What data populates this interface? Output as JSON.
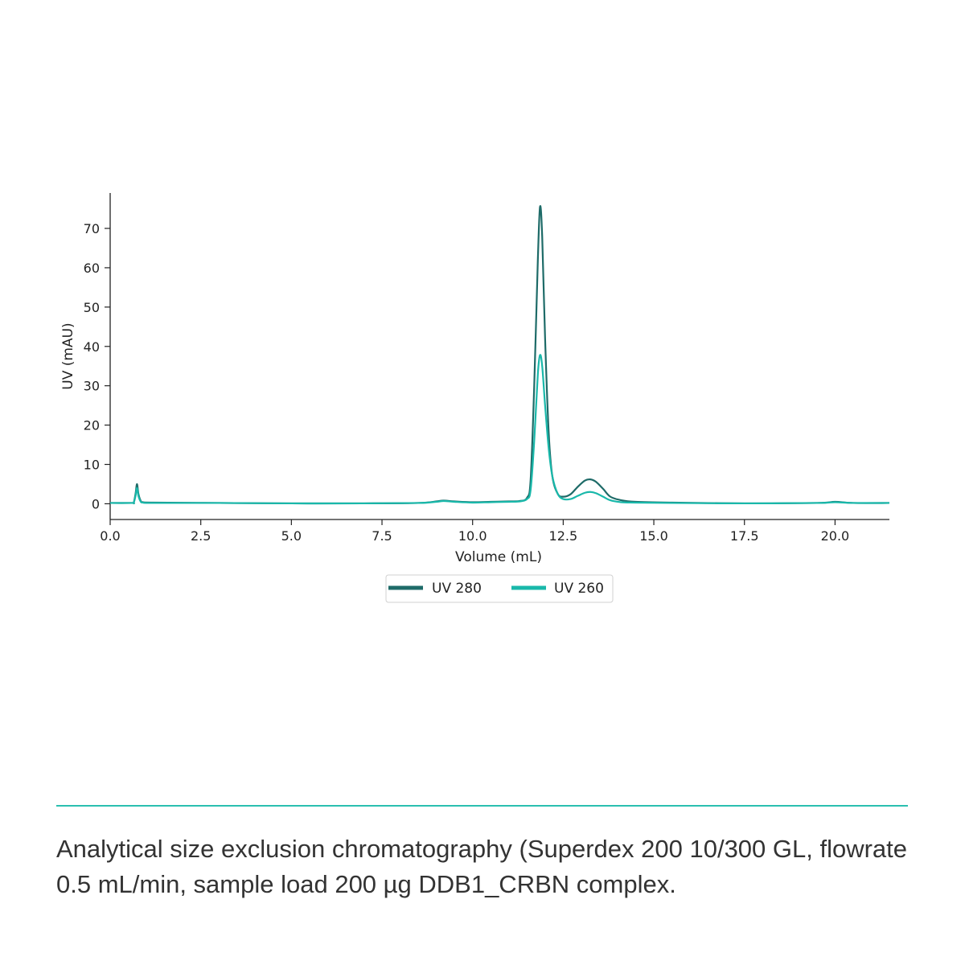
{
  "colors": {
    "uv280": "#1e6b68",
    "uv260": "#19b8aa",
    "divider": "#2bbfb0",
    "axis": "#222222",
    "caption_text": "#333333"
  },
  "chart_data": {
    "type": "line",
    "xlabel": "Volume (mL)",
    "ylabel": "UV (mAU)",
    "xlim": [
      0,
      21.5
    ],
    "ylim": [
      -4,
      79
    ],
    "xticks": [
      0.0,
      2.5,
      5.0,
      7.5,
      10.0,
      12.5,
      15.0,
      17.5,
      20.0
    ],
    "xtick_labels": [
      "0.0",
      "2.5",
      "5.0",
      "7.5",
      "10.0",
      "12.5",
      "15.0",
      "17.5",
      "20.0"
    ],
    "yticks": [
      0,
      10,
      20,
      30,
      40,
      50,
      60,
      70
    ],
    "ytick_labels": [
      "0",
      "10",
      "20",
      "30",
      "40",
      "50",
      "60",
      "70"
    ],
    "grid": false,
    "legend_position": "bottom-center",
    "series": [
      {
        "name": "UV 280",
        "color": "#1e6b68",
        "points": [
          [
            0,
            0.2
          ],
          [
            0.6,
            0.2
          ],
          [
            0.65,
            0.3
          ],
          [
            0.7,
            2.5
          ],
          [
            0.74,
            5.0
          ],
          [
            0.78,
            2.5
          ],
          [
            0.84,
            0.8
          ],
          [
            0.9,
            0.4
          ],
          [
            1.2,
            0.3
          ],
          [
            3,
            0.2
          ],
          [
            5,
            0.1
          ],
          [
            7,
            0.1
          ],
          [
            8.5,
            0.2
          ],
          [
            9.0,
            0.6
          ],
          [
            9.2,
            0.8
          ],
          [
            9.5,
            0.6
          ],
          [
            10.0,
            0.4
          ],
          [
            10.5,
            0.5
          ],
          [
            11.0,
            0.6
          ],
          [
            11.3,
            0.7
          ],
          [
            11.5,
            1.5
          ],
          [
            11.6,
            6
          ],
          [
            11.7,
            30
          ],
          [
            11.8,
            62
          ],
          [
            11.86,
            75.5
          ],
          [
            11.92,
            68
          ],
          [
            12.0,
            42
          ],
          [
            12.1,
            18
          ],
          [
            12.2,
            7
          ],
          [
            12.35,
            2.5
          ],
          [
            12.5,
            1.8
          ],
          [
            12.7,
            2.4
          ],
          [
            12.9,
            4.3
          ],
          [
            13.1,
            5.9
          ],
          [
            13.25,
            6.2
          ],
          [
            13.4,
            5.6
          ],
          [
            13.6,
            3.8
          ],
          [
            13.8,
            1.8
          ],
          [
            14.1,
            0.9
          ],
          [
            14.5,
            0.5
          ],
          [
            15.5,
            0.3
          ],
          [
            17.5,
            0.1
          ],
          [
            19.5,
            0.2
          ],
          [
            20.0,
            0.5
          ],
          [
            20.5,
            0.2
          ],
          [
            21.5,
            0.2
          ]
        ]
      },
      {
        "name": "UV 260",
        "color": "#19b8aa",
        "points": [
          [
            0,
            0.2
          ],
          [
            0.6,
            0.2
          ],
          [
            0.65,
            0.3
          ],
          [
            0.7,
            2.0
          ],
          [
            0.74,
            4.0
          ],
          [
            0.78,
            2.0
          ],
          [
            0.84,
            0.6
          ],
          [
            0.9,
            0.3
          ],
          [
            1.2,
            0.2
          ],
          [
            3,
            0.2
          ],
          [
            5,
            0.1
          ],
          [
            7,
            0.1
          ],
          [
            8.5,
            0.2
          ],
          [
            9.0,
            0.5
          ],
          [
            9.2,
            0.7
          ],
          [
            9.5,
            0.5
          ],
          [
            10.0,
            0.3
          ],
          [
            10.5,
            0.4
          ],
          [
            11.0,
            0.5
          ],
          [
            11.3,
            0.6
          ],
          [
            11.5,
            1.2
          ],
          [
            11.6,
            3.5
          ],
          [
            11.7,
            16
          ],
          [
            11.8,
            33
          ],
          [
            11.86,
            37.8
          ],
          [
            11.92,
            35
          ],
          [
            12.0,
            25
          ],
          [
            12.1,
            14
          ],
          [
            12.2,
            7
          ],
          [
            12.35,
            2.5
          ],
          [
            12.5,
            1.2
          ],
          [
            12.7,
            1.2
          ],
          [
            12.9,
            2.0
          ],
          [
            13.1,
            2.8
          ],
          [
            13.25,
            3.0
          ],
          [
            13.4,
            2.7
          ],
          [
            13.6,
            1.8
          ],
          [
            13.8,
            0.9
          ],
          [
            14.1,
            0.4
          ],
          [
            14.5,
            0.3
          ],
          [
            15.5,
            0.2
          ],
          [
            17.5,
            0.1
          ],
          [
            19.5,
            0.2
          ],
          [
            20.0,
            0.4
          ],
          [
            20.5,
            0.2
          ],
          [
            21.5,
            0.2
          ]
        ]
      }
    ]
  },
  "caption": {
    "text": "Analytical size exclusion chromatography (Superdex 200 10/300 GL, flowrate 0.5 mL/min, sample load 200 µg DDB1_CRBN complex."
  }
}
